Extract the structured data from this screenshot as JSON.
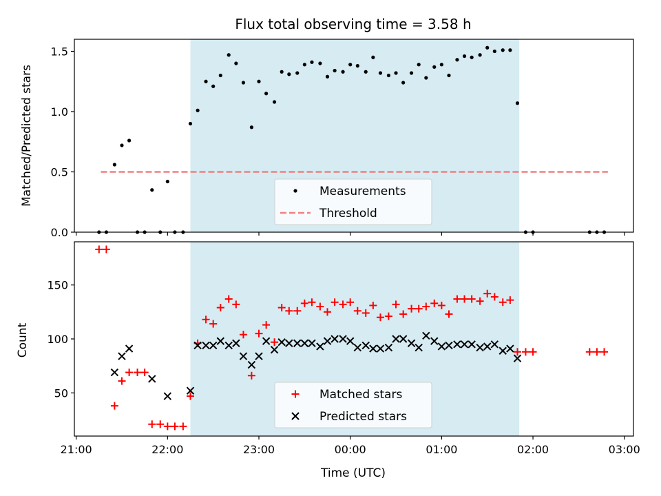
{
  "chart_data": [
    {
      "type": "scatter",
      "title": "Flux total observing time = 3.58 h",
      "ylabel": "Matched/Predicted stars",
      "xlim": [
        -0.02,
        6.1
      ],
      "ylim": [
        0,
        1.6
      ],
      "yticks": [
        0.0,
        0.5,
        1.0,
        1.5
      ],
      "ytick_labels": [
        "0.0",
        "0.5",
        "1.0",
        "1.5"
      ],
      "observing_window": [
        1.25,
        4.85
      ],
      "window_color": "#add8e6",
      "threshold": {
        "name": "Threshold",
        "value": 0.5,
        "x_range": [
          0.27,
          5.82
        ],
        "color": "#f08080"
      },
      "series": [
        {
          "name": "Measurements",
          "marker": "dot",
          "color": "#000000",
          "x": [
            0.25,
            0.33,
            0.42,
            0.5,
            0.58,
            0.67,
            0.75,
            0.83,
            0.92,
            1.0,
            1.08,
            1.17,
            1.25,
            1.33,
            1.42,
            1.5,
            1.58,
            1.67,
            1.75,
            1.83,
            1.92,
            2.0,
            2.08,
            2.17,
            2.25,
            2.33,
            2.42,
            2.5,
            2.58,
            2.67,
            2.75,
            2.83,
            2.92,
            3.0,
            3.08,
            3.17,
            3.25,
            3.33,
            3.42,
            3.5,
            3.58,
            3.67,
            3.75,
            3.83,
            3.92,
            4.0,
            4.08,
            4.17,
            4.25,
            4.33,
            4.42,
            4.5,
            4.58,
            4.67,
            4.75,
            4.83,
            4.92,
            5.0,
            5.62,
            5.7,
            5.78
          ],
          "y": [
            0,
            0,
            0.56,
            0.72,
            0.76,
            0,
            0,
            0.35,
            0,
            0.42,
            0,
            0,
            0.9,
            1.01,
            1.25,
            1.21,
            1.3,
            1.47,
            1.4,
            1.24,
            0.87,
            1.25,
            1.15,
            1.08,
            1.33,
            1.31,
            1.32,
            1.39,
            1.41,
            1.4,
            1.29,
            1.34,
            1.33,
            1.39,
            1.38,
            1.33,
            1.45,
            1.32,
            1.3,
            1.32,
            1.24,
            1.32,
            1.39,
            1.28,
            1.37,
            1.39,
            1.3,
            1.43,
            1.46,
            1.45,
            1.47,
            1.53,
            1.5,
            1.51,
            1.51,
            1.07,
            0,
            0,
            0,
            0,
            0
          ]
        }
      ],
      "legend": {
        "placement": "lower-center",
        "entries": [
          "Measurements",
          "Threshold"
        ]
      }
    },
    {
      "type": "scatter",
      "xlabel": "Time (UTC)",
      "ylabel": "Count",
      "xlim": [
        -0.02,
        6.1
      ],
      "ylim": [
        10,
        190
      ],
      "yticks": [
        50,
        100,
        150
      ],
      "ytick_labels": [
        "50",
        "100",
        "150"
      ],
      "xticks": [
        0,
        1,
        2,
        3,
        4,
        5,
        6
      ],
      "xtick_labels": [
        "21:00",
        "22:00",
        "23:00",
        "00:00",
        "01:00",
        "02:00",
        "03:00"
      ],
      "observing_window": [
        1.25,
        4.85
      ],
      "window_color": "#add8e6",
      "series": [
        {
          "name": "Matched stars",
          "marker": "plus",
          "color": "#ff0000",
          "x": [
            0.25,
            0.33,
            0.42,
            0.5,
            0.58,
            0.67,
            0.75,
            0.83,
            0.92,
            1.0,
            1.08,
            1.17,
            1.25,
            1.33,
            1.42,
            1.5,
            1.58,
            1.67,
            1.75,
            1.83,
            1.92,
            2.0,
            2.08,
            2.17,
            2.25,
            2.33,
            2.42,
            2.5,
            2.58,
            2.67,
            2.75,
            2.83,
            2.92,
            3.0,
            3.08,
            3.17,
            3.25,
            3.33,
            3.42,
            3.5,
            3.58,
            3.67,
            3.75,
            3.83,
            3.92,
            4.0,
            4.08,
            4.17,
            4.25,
            4.33,
            4.42,
            4.5,
            4.58,
            4.67,
            4.75,
            4.83,
            4.92,
            5.0,
            5.62,
            5.7,
            5.78
          ],
          "y": [
            183,
            183,
            38,
            61,
            69,
            69,
            69,
            21,
            21,
            19,
            19,
            19,
            47,
            96,
            118,
            114,
            129,
            137,
            132,
            104,
            66,
            105,
            113,
            97,
            129,
            126,
            126,
            133,
            134,
            130,
            125,
            134,
            132,
            134,
            126,
            124,
            131,
            120,
            121,
            132,
            123,
            128,
            128,
            130,
            133,
            131,
            123,
            137,
            137,
            137,
            135,
            142,
            139,
            134,
            136,
            88,
            88,
            88,
            88,
            88,
            88
          ]
        },
        {
          "name": "Predicted stars",
          "marker": "x",
          "color": "#000000",
          "x": [
            0.42,
            0.5,
            0.58,
            0.83,
            1.0,
            1.25,
            1.33,
            1.42,
            1.5,
            1.58,
            1.67,
            1.75,
            1.83,
            1.92,
            2.0,
            2.08,
            2.17,
            2.25,
            2.33,
            2.42,
            2.5,
            2.58,
            2.67,
            2.75,
            2.83,
            2.92,
            3.0,
            3.08,
            3.17,
            3.25,
            3.33,
            3.42,
            3.5,
            3.58,
            3.67,
            3.75,
            3.83,
            3.92,
            4.0,
            4.08,
            4.17,
            4.25,
            4.33,
            4.42,
            4.5,
            4.58,
            4.67,
            4.75,
            4.83
          ],
          "y": [
            69,
            84,
            91,
            63,
            47,
            52,
            94,
            94,
            94,
            98,
            94,
            96,
            84,
            76,
            84,
            98,
            90,
            97,
            96,
            96,
            96,
            96,
            93,
            98,
            100,
            100,
            98,
            92,
            94,
            91,
            91,
            92,
            100,
            100,
            96,
            92,
            103,
            98,
            93,
            94,
            95,
            95,
            95,
            92,
            93,
            95,
            89,
            91,
            82
          ]
        }
      ],
      "legend": {
        "placement": "lower-center",
        "entries": [
          "Matched stars",
          "Predicted stars"
        ]
      }
    }
  ]
}
